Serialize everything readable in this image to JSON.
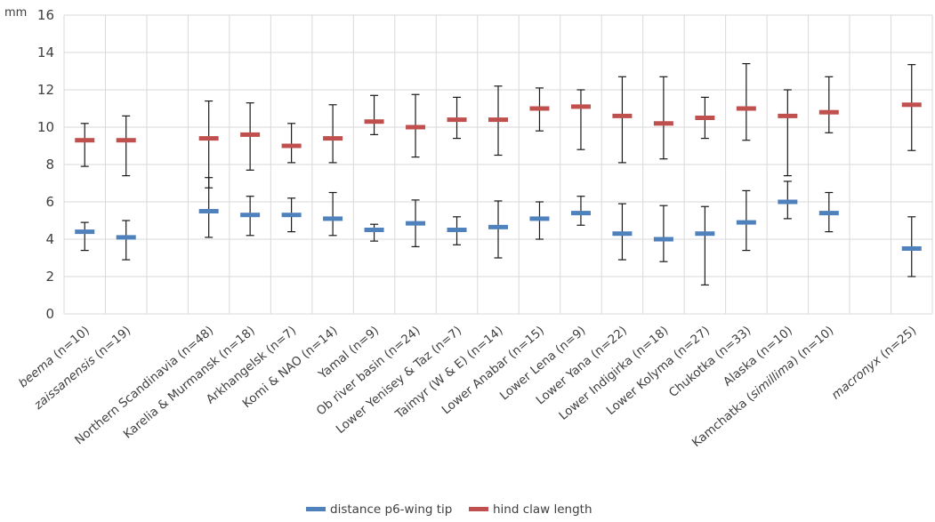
{
  "chart_data": {
    "type": "scatter",
    "y_unit": "mm",
    "ylim": [
      0,
      16
    ],
    "y_ticks": [
      "0",
      "2",
      "4",
      "6",
      "8",
      "10",
      "12",
      "14",
      "16"
    ],
    "grid": true,
    "legend_position": "bottom",
    "categories": [
      {
        "parts": [
          {
            "t": "beema",
            "i": true
          },
          {
            "t": " (n=10)",
            "i": false
          }
        ]
      },
      {
        "parts": [
          {
            "t": "zaissanensis",
            "i": true
          },
          {
            "t": " (n=19)",
            "i": false
          }
        ]
      },
      {
        "parts": []
      },
      {
        "parts": [
          {
            "t": "Northern Scandinavia (n=48)",
            "i": false
          }
        ]
      },
      {
        "parts": [
          {
            "t": "Karelia & Murmansk (n=18)",
            "i": false
          }
        ]
      },
      {
        "parts": [
          {
            "t": "Arkhangelsk (n=7)",
            "i": false
          }
        ]
      },
      {
        "parts": [
          {
            "t": "Komi & NAO (n=14)",
            "i": false
          }
        ]
      },
      {
        "parts": [
          {
            "t": "Yamal (n=9)",
            "i": false
          }
        ]
      },
      {
        "parts": [
          {
            "t": "Ob river basin (n=24)",
            "i": false
          }
        ]
      },
      {
        "parts": [
          {
            "t": "Lower Yenisey & Taz (n=7)",
            "i": false
          }
        ]
      },
      {
        "parts": [
          {
            "t": "Taimyr (W & E) (n=14)",
            "i": false
          }
        ]
      },
      {
        "parts": [
          {
            "t": "Lower Anabar (n=15)",
            "i": false
          }
        ]
      },
      {
        "parts": [
          {
            "t": "Lower Lena (n=9)",
            "i": false
          }
        ]
      },
      {
        "parts": [
          {
            "t": "Lower Yana (n=22)",
            "i": false
          }
        ]
      },
      {
        "parts": [
          {
            "t": "Lower Indigirka (n=18)",
            "i": false
          }
        ]
      },
      {
        "parts": [
          {
            "t": "Lower Kolyma (n=27)",
            "i": false
          }
        ]
      },
      {
        "parts": [
          {
            "t": "Chukotka (n=33)",
            "i": false
          }
        ]
      },
      {
        "parts": [
          {
            "t": "Alaska (n=10)",
            "i": false
          }
        ]
      },
      {
        "parts": [
          {
            "t": "Kamchatka (",
            "i": false
          },
          {
            "t": "simillima",
            "i": true
          },
          {
            "t": ") (n=10)",
            "i": false
          }
        ]
      },
      {
        "parts": []
      },
      {
        "parts": [
          {
            "t": "macronyx",
            "i": true
          },
          {
            "t": " (n=25)",
            "i": false
          }
        ]
      }
    ],
    "series": [
      {
        "name": "distance p6-wing tip",
        "color": "#4f81bd",
        "values": [
          4.4,
          4.1,
          null,
          5.5,
          5.3,
          5.3,
          5.1,
          4.5,
          4.85,
          4.5,
          4.65,
          5.1,
          5.4,
          4.3,
          4.0,
          4.3,
          4.9,
          6.0,
          5.4,
          null,
          3.5
        ],
        "low": [
          3.4,
          2.9,
          null,
          4.1,
          4.2,
          4.4,
          4.2,
          3.9,
          3.6,
          3.7,
          3.0,
          4.0,
          4.75,
          2.9,
          2.8,
          1.55,
          3.4,
          5.1,
          4.4,
          null,
          2.0
        ],
        "high": [
          4.9,
          5.0,
          null,
          7.3,
          6.3,
          6.2,
          6.5,
          4.8,
          6.1,
          5.2,
          6.05,
          6.0,
          6.3,
          5.9,
          5.8,
          5.75,
          6.6,
          7.1,
          6.5,
          null,
          5.2
        ]
      },
      {
        "name": "hind claw length",
        "color": "#c0504d",
        "values": [
          9.3,
          9.3,
          null,
          9.4,
          9.6,
          9.0,
          9.4,
          10.3,
          10.0,
          10.4,
          10.4,
          11.0,
          11.1,
          10.6,
          10.2,
          10.5,
          11.0,
          10.6,
          10.8,
          null,
          11.2
        ],
        "low": [
          7.9,
          7.4,
          null,
          6.75,
          7.7,
          8.1,
          8.1,
          9.6,
          8.4,
          9.4,
          8.5,
          9.8,
          8.8,
          8.1,
          8.3,
          9.4,
          9.3,
          7.4,
          9.7,
          null,
          8.75
        ],
        "high": [
          10.2,
          10.6,
          null,
          11.4,
          11.3,
          10.2,
          11.2,
          11.7,
          11.75,
          11.6,
          12.2,
          12.1,
          12.0,
          12.7,
          12.7,
          11.6,
          13.4,
          12.0,
          12.7,
          null,
          13.35
        ]
      }
    ]
  }
}
